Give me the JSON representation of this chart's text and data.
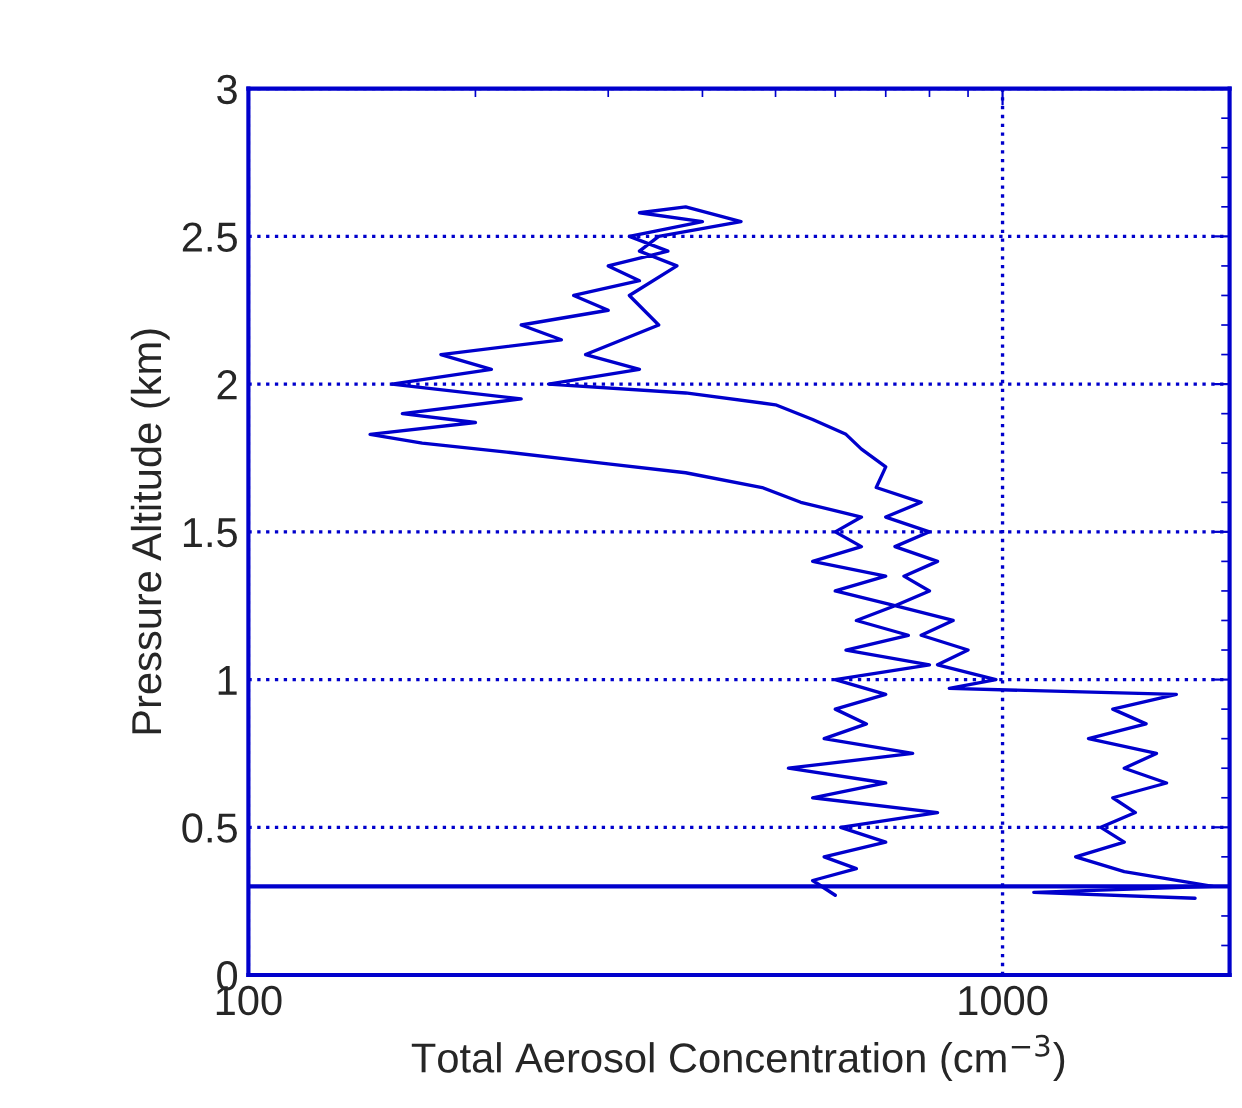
{
  "chart_data": {
    "type": "line",
    "xlabel": "Total Aerosol Concentration (cm$^{−3}$)",
    "ylabel": "Pressure Altitude (km)",
    "log": "x",
    "xlim": [
      100,
      2000
    ],
    "xticks": [
      100,
      1000
    ],
    "ylim": [
      0,
      3
    ],
    "yticks": [
      0,
      0.5,
      1,
      1.5,
      2,
      2.5,
      3
    ],
    "grid": true,
    "line_style": "solid",
    "marker": "none",
    "ref_lines": [
      {
        "axis": "y",
        "value": 0.3,
        "color": "#0000cc"
      }
    ],
    "series": [
      {
        "color": "#0000cc",
        "x": [
          600,
          560,
          640,
          580,
          700,
          610,
          820,
          560,
          700,
          520,
          760,
          580,
          660,
          600,
          700,
          600,
          800,
          620,
          750,
          640,
          720,
          600,
          700,
          560,
          650,
          600,
          650,
          540,
          480,
          380,
          300,
          220,
          170,
          145,
          200,
          160,
          230,
          155,
          210,
          180,
          260,
          230,
          300,
          270,
          330,
          300,
          360,
          320,
          400,
          330,
          380,
          450,
          350,
          330,
          370,
          320,
          350,
          280,
          330,
          250,
          380,
          500,
          560,
          620,
          650,
          700,
          680,
          780,
          700,
          800,
          720,
          820,
          740,
          800,
          720,
          860,
          780,
          900,
          820,
          980,
          850,
          1700,
          1400,
          1550,
          1300,
          1600,
          1450,
          1650,
          1400,
          1500,
          1350,
          1450,
          1250,
          1450,
          1900,
          1100,
          1800
        ],
        "values": [
          0.27,
          0.32,
          0.36,
          0.4,
          0.45,
          0.5,
          0.55,
          0.6,
          0.65,
          0.7,
          0.75,
          0.8,
          0.85,
          0.9,
          0.95,
          1.0,
          1.05,
          1.1,
          1.15,
          1.2,
          1.25,
          1.3,
          1.35,
          1.4,
          1.45,
          1.5,
          1.55,
          1.6,
          1.65,
          1.7,
          1.73,
          1.77,
          1.8,
          1.83,
          1.87,
          1.9,
          1.95,
          2.0,
          2.05,
          2.1,
          2.15,
          2.2,
          2.25,
          2.3,
          2.35,
          2.4,
          2.45,
          2.5,
          2.55,
          2.58,
          2.6,
          2.55,
          2.5,
          2.45,
          2.4,
          2.3,
          2.2,
          2.1,
          2.05,
          2.0,
          1.97,
          1.93,
          1.88,
          1.83,
          1.78,
          1.72,
          1.65,
          1.6,
          1.55,
          1.5,
          1.45,
          1.4,
          1.35,
          1.3,
          1.25,
          1.2,
          1.15,
          1.1,
          1.05,
          1.0,
          0.97,
          0.95,
          0.9,
          0.85,
          0.8,
          0.75,
          0.7,
          0.65,
          0.6,
          0.55,
          0.5,
          0.45,
          0.4,
          0.35,
          0.3,
          0.28,
          0.26
        ]
      }
    ]
  }
}
